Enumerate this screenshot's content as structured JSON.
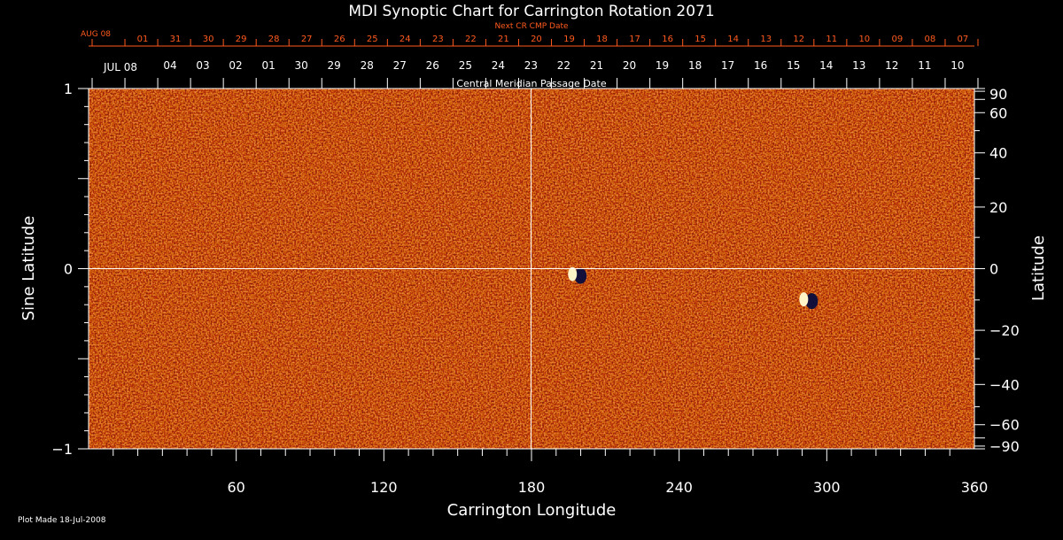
{
  "chart_data": {
    "type": "heatmap",
    "title": "MDI Synoptic Chart for Carrington Rotation 2071",
    "xlabel": "Carrington Longitude",
    "ylabel_left": "Sine Latitude",
    "ylabel_right": "Latitude",
    "xlim": [
      0,
      360
    ],
    "ylim": [
      -1,
      1
    ],
    "x_ticks": [
      60,
      120,
      180,
      240,
      300,
      360
    ],
    "y_ticks_left": [
      "1",
      "0",
      "−1"
    ],
    "y_ticks_right": [
      90,
      60,
      40,
      20,
      0,
      -20,
      -40,
      -60,
      -90
    ],
    "y_ticks_right_labels": [
      "90",
      "60",
      "40",
      "20",
      "0",
      "−20",
      "−40",
      "−60",
      "−90"
    ],
    "top_axis_label": "Central Meridian Passage Date",
    "top_axis_month": "JUL 08",
    "top_axis_dates": [
      "04",
      "03",
      "02",
      "01",
      "30",
      "29",
      "28",
      "27",
      "26",
      "25",
      "24",
      "23",
      "22",
      "21",
      "20",
      "19",
      "18",
      "17",
      "16",
      "15",
      "14",
      "13",
      "12",
      "11",
      "10"
    ],
    "next_cr_label": "Next CR CMP Date",
    "next_cr_month": "AUG 08",
    "next_cr_dates": [
      "01",
      "31",
      "30",
      "29",
      "28",
      "27",
      "26",
      "25",
      "24",
      "23",
      "22",
      "21",
      "20",
      "19",
      "18",
      "17",
      "16",
      "15",
      "14",
      "13",
      "12",
      "11",
      "10",
      "09",
      "08",
      "07"
    ],
    "features": [
      {
        "name": "active-region-1",
        "lon": 197,
        "sinlat": -0.03
      },
      {
        "name": "active-region-2",
        "lon": 291,
        "sinlat": -0.17
      }
    ],
    "footer": "Plot Made 18-Jul-2008",
    "colors": {
      "background": "#000000",
      "field": "#e2541a",
      "text": "#ffffff",
      "next_cr": "#ff5a1e"
    }
  }
}
